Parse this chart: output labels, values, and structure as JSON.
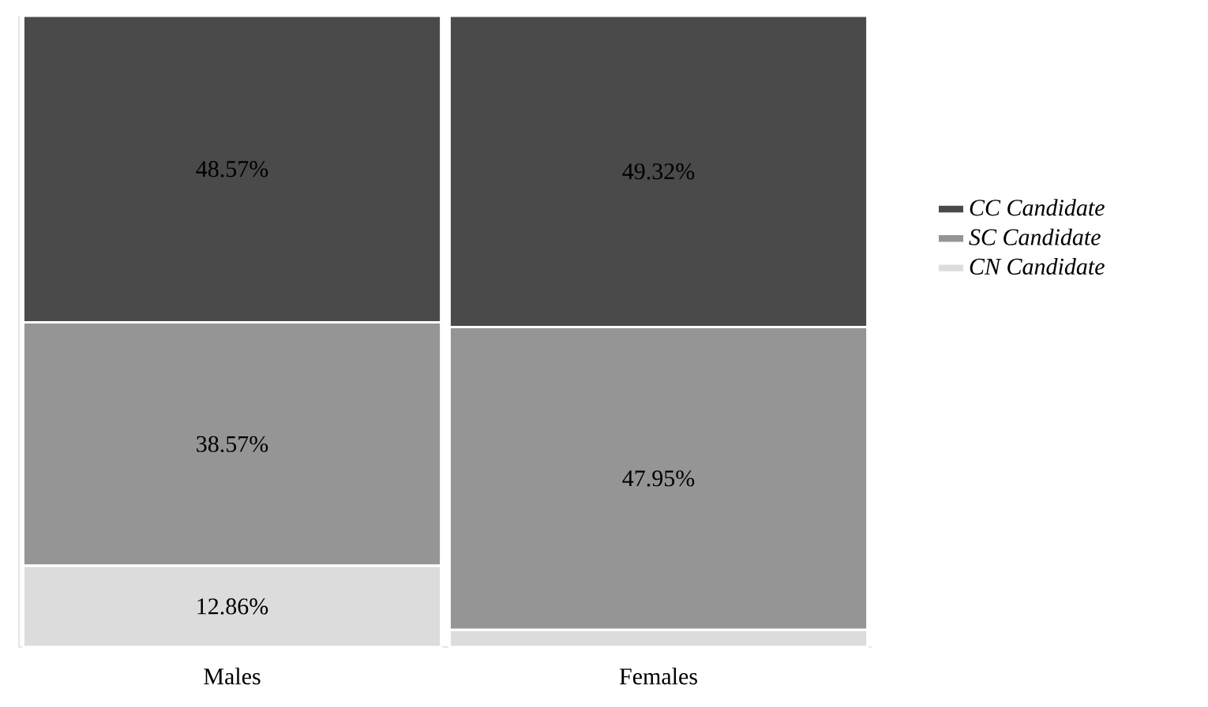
{
  "chart_data": {
    "type": "bar",
    "stacked": true,
    "categories": [
      "Males",
      "Females"
    ],
    "ylim": [
      0,
      100
    ],
    "tick_labels": "x",
    "legend": "right",
    "series": [
      {
        "name": "CN Candidate",
        "color": "#dcdcdc",
        "values": [
          12.86,
          2.73
        ],
        "value_labels": [
          "12.86%",
          null
        ]
      },
      {
        "name": "SC Candidate",
        "color": "#959595",
        "values": [
          38.57,
          47.95
        ],
        "value_labels": [
          "38.57%",
          "47.95%"
        ]
      },
      {
        "name": "CC Candidate",
        "color": "#4a4a4a",
        "values": [
          48.57,
          49.32
        ],
        "value_labels": [
          "48.57%",
          "49.32%"
        ]
      }
    ]
  }
}
